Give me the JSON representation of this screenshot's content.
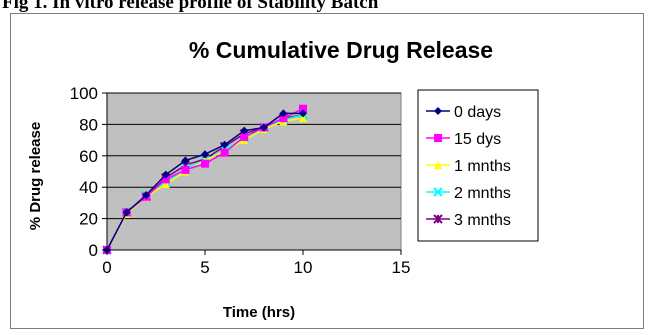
{
  "caption": "Fig 1. In vitro release profile of Stability Batch",
  "chart_data": {
    "type": "line",
    "title": "% Cumulative Drug Release",
    "xlabel": "Time (hrs)",
    "ylabel": "% Drug release",
    "xlim": [
      0,
      15
    ],
    "ylim": [
      0,
      100
    ],
    "xticks": [
      0,
      5,
      10,
      15
    ],
    "yticks": [
      0,
      20,
      40,
      60,
      80,
      100
    ],
    "grid": "horizontal",
    "legend_position": "right",
    "plot_background": "#c0c0c0",
    "x": [
      0,
      1,
      2,
      3,
      4,
      5,
      6,
      7,
      8,
      9,
      10
    ],
    "series": [
      {
        "name": "0 days",
        "color": "#000080",
        "marker": "diamond",
        "values": [
          0,
          24,
          35,
          48,
          57,
          61,
          67,
          76,
          78,
          87,
          87
        ]
      },
      {
        "name": "15 dys",
        "color": "#ff00ff",
        "marker": "square",
        "values": [
          0,
          24,
          34,
          45,
          51,
          55,
          62,
          72,
          78,
          84,
          90
        ]
      },
      {
        "name": "1 mnths",
        "color": "#ffff00",
        "marker": "triangle",
        "values": [
          0,
          23,
          34,
          42,
          50,
          57,
          63,
          70,
          77,
          82,
          84
        ]
      },
      {
        "name": "2 mnths",
        "color": "#00ffff",
        "marker": "x",
        "values": [
          0,
          24,
          35,
          43,
          52,
          57,
          64,
          71,
          77,
          83,
          86
        ]
      },
      {
        "name": "3 mnths",
        "color": "#800080",
        "marker": "star",
        "values": [
          0,
          24,
          34,
          46,
          54,
          58,
          66,
          74,
          78,
          84,
          86
        ]
      }
    ]
  }
}
